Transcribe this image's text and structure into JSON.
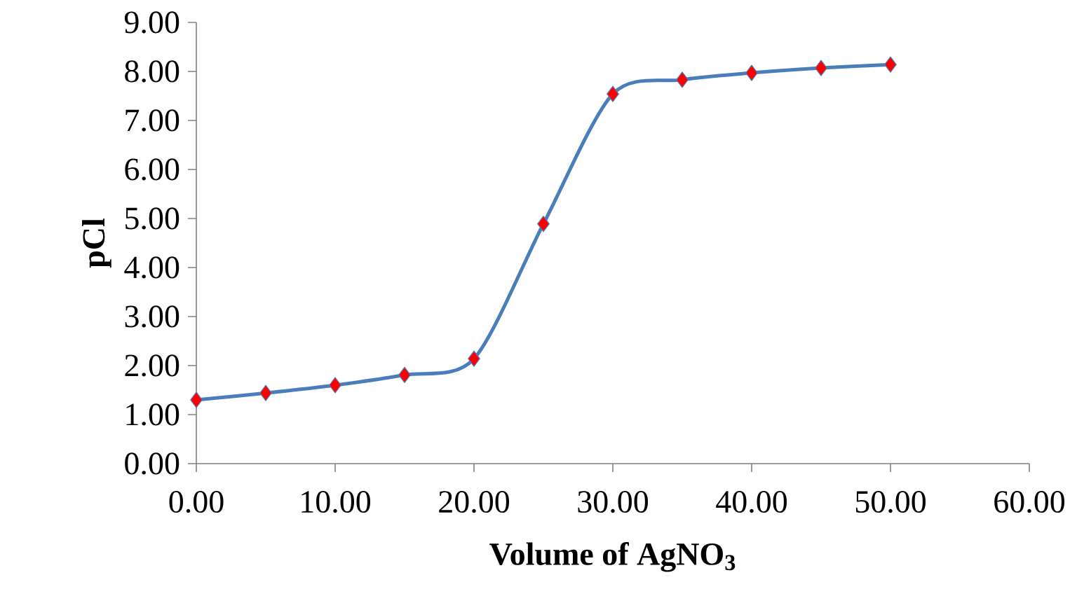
{
  "chart_data": {
    "type": "line",
    "xlabel": "Volume of AgNO$_{3}$",
    "ylabel": "pCl",
    "x": [
      0,
      5,
      10,
      15,
      20,
      25,
      30,
      35,
      40,
      45,
      50
    ],
    "series": [
      {
        "color": "#4a7ebb",
        "values": [
          1.3,
          1.44,
          1.6,
          1.81,
          2.14,
          4.89,
          7.54,
          7.83,
          7.97,
          8.07,
          8.14
        ]
      }
    ],
    "marker": "diamond",
    "line_style": "solid",
    "xlim": [
      0,
      60
    ],
    "xticks": [
      {
        "value": 0,
        "label": "0.00"
      },
      {
        "value": 10,
        "label": "10.00"
      },
      {
        "value": 20,
        "label": "20.00"
      },
      {
        "value": 30,
        "label": "30.00"
      },
      {
        "value": 40,
        "label": "40.00"
      },
      {
        "value": 50,
        "label": "50.00"
      },
      {
        "value": 60,
        "label": "60.00"
      }
    ],
    "ylim": [
      0,
      9
    ],
    "yticks": [
      {
        "value": 0,
        "label": "0.00"
      },
      {
        "value": 1,
        "label": "1.00"
      },
      {
        "value": 2,
        "label": "2.00"
      },
      {
        "value": 3,
        "label": "3.00"
      },
      {
        "value": 4,
        "label": "4.00"
      },
      {
        "value": 5,
        "label": "5.00"
      },
      {
        "value": 6,
        "label": "6.00"
      },
      {
        "value": 7,
        "label": "7.00"
      },
      {
        "value": 8,
        "label": "8.00"
      },
      {
        "value": 9,
        "label": "9.00"
      }
    ]
  }
}
